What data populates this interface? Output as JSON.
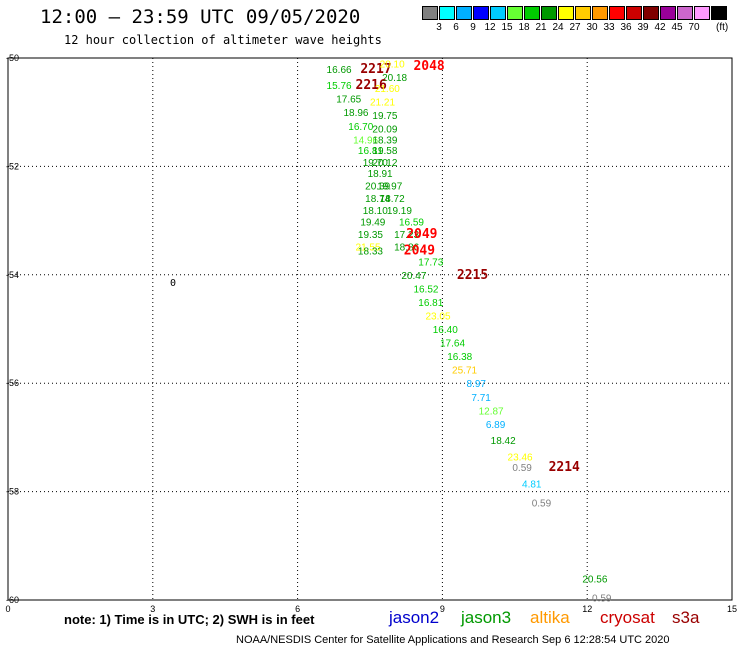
{
  "header": {
    "title": "12:00 – 23:59 UTC 09/05/2020",
    "subtitle": "12 hour collection of altimeter wave heights"
  },
  "legend": {
    "colors": [
      "#808080",
      "#00ffff",
      "#00b0ff",
      "#0000ff",
      "#00ccff",
      "#66ff33",
      "#00cc00",
      "#009900",
      "#ffff00",
      "#ffcc00",
      "#ff9900",
      "#ff0000",
      "#cc0000",
      "#800000",
      "#990099",
      "#cc66cc",
      "#ff99ff",
      "#000000"
    ],
    "labels": [
      "3",
      "6",
      "9",
      "12",
      "15",
      "18",
      "21",
      "24",
      "27",
      "30",
      "33",
      "36",
      "39",
      "42",
      "45",
      "70"
    ],
    "unit": "(ft)"
  },
  "footer": {
    "note": "note:  1) Time is in UTC;  2) SWH is in feet",
    "credit": "NOAA/NESDIS Center for Satellite Applications and Research     Sep  6 12:28:54 UTC 2020",
    "satellites": [
      {
        "name": "jason2",
        "color": "#0000cc"
      },
      {
        "name": "jason3",
        "color": "#009900"
      },
      {
        "name": "altika",
        "color": "#ff9900"
      },
      {
        "name": "cryosat",
        "color": "#cc0000"
      },
      {
        "name": "s3a",
        "color": "#990000"
      }
    ]
  },
  "map_labels": [
    {
      "text": "0"
    }
  ],
  "chart_data": {
    "type": "scatter",
    "xlim": [
      0,
      15
    ],
    "ylim": [
      -60,
      -50
    ],
    "x_ticks": [
      0,
      3,
      6,
      9,
      12,
      15
    ],
    "y_ticks": [
      -50,
      -52,
      -54,
      -56,
      -58,
      -60
    ],
    "x_tick_labels": [
      "0",
      "3",
      "6",
      "9",
      "12",
      "15"
    ],
    "y_tick_labels": [
      "-50",
      "-52",
      "-54",
      "-56",
      "-58",
      "-60"
    ],
    "grid": true,
    "points": [
      {
        "label": "16.66",
        "x": 6.6,
        "y": -50.2,
        "color": "#009900"
      },
      {
        "label": "2217",
        "x": 7.3,
        "y": -50.2,
        "color": "#990000",
        "bold": true
      },
      {
        "label": "20.10",
        "x": 7.7,
        "y": -50.1,
        "color": "#ffff00"
      },
      {
        "label": "20.18",
        "x": 7.75,
        "y": -50.35,
        "color": "#009900"
      },
      {
        "label": "2048",
        "x": 8.4,
        "y": -50.15,
        "color": "#ff0000",
        "bold": true
      },
      {
        "label": "15.76",
        "x": 6.6,
        "y": -50.5,
        "color": "#00cc00"
      },
      {
        "label": "2216",
        "x": 7.2,
        "y": -50.5,
        "color": "#990000",
        "bold": true
      },
      {
        "label": "21.60",
        "x": 7.6,
        "y": -50.55,
        "color": "#ffff00"
      },
      {
        "label": "17.65",
        "x": 6.8,
        "y": -50.75,
        "color": "#009900"
      },
      {
        "label": "21.21",
        "x": 7.5,
        "y": -50.8,
        "color": "#ffff00"
      },
      {
        "label": "18.96",
        "x": 6.95,
        "y": -51.0,
        "color": "#009900"
      },
      {
        "label": "19.75",
        "x": 7.55,
        "y": -51.05,
        "color": "#009900"
      },
      {
        "label": "16.70",
        "x": 7.05,
        "y": -51.25,
        "color": "#00cc00"
      },
      {
        "label": "20.09",
        "x": 7.55,
        "y": -51.3,
        "color": "#009900"
      },
      {
        "label": "14.96",
        "x": 7.15,
        "y": -51.5,
        "color": "#66ff33"
      },
      {
        "label": "18.39",
        "x": 7.55,
        "y": -51.5,
        "color": "#009900"
      },
      {
        "label": "16.81",
        "x": 7.25,
        "y": -51.7,
        "color": "#00cc00"
      },
      {
        "label": "19.58",
        "x": 7.55,
        "y": -51.7,
        "color": "#009900"
      },
      {
        "label": "19.70",
        "x": 7.35,
        "y": -51.92,
        "color": "#009900"
      },
      {
        "label": "20.12",
        "x": 7.55,
        "y": -51.92,
        "color": "#009900"
      },
      {
        "label": "18.91",
        "x": 7.45,
        "y": -52.12,
        "color": "#009900"
      },
      {
        "label": "20.39",
        "x": 7.4,
        "y": -52.35,
        "color": "#009900"
      },
      {
        "label": "19.97",
        "x": 7.65,
        "y": -52.35,
        "color": "#009900"
      },
      {
        "label": "18.74",
        "x": 7.4,
        "y": -52.58,
        "color": "#009900"
      },
      {
        "label": "18.72",
        "x": 7.7,
        "y": -52.58,
        "color": "#009900"
      },
      {
        "label": "18.10",
        "x": 7.35,
        "y": -52.8,
        "color": "#009900"
      },
      {
        "label": "19.19",
        "x": 7.85,
        "y": -52.8,
        "color": "#009900"
      },
      {
        "label": "19.49",
        "x": 7.3,
        "y": -53.02,
        "color": "#009900"
      },
      {
        "label": "16.59",
        "x": 8.1,
        "y": -53.02,
        "color": "#00cc00"
      },
      {
        "label": "19.35",
        "x": 7.25,
        "y": -53.25,
        "color": "#009900"
      },
      {
        "label": "17.23",
        "x": 8.0,
        "y": -53.25,
        "color": "#009900"
      },
      {
        "label": "2049",
        "x": 8.25,
        "y": -53.25,
        "color": "#ff0000",
        "bold": true
      },
      {
        "label": "21.55",
        "x": 7.2,
        "y": -53.48,
        "color": "#ffff00"
      },
      {
        "label": "18.33",
        "x": 7.25,
        "y": -53.55,
        "color": "#009900"
      },
      {
        "label": "18.86",
        "x": 8.0,
        "y": -53.48,
        "color": "#009900"
      },
      {
        "label": "2049",
        "x": 8.2,
        "y": -53.55,
        "color": "#ff0000",
        "bold": true
      },
      {
        "label": "17.73",
        "x": 8.5,
        "y": -53.75,
        "color": "#00cc00"
      },
      {
        "label": "20.47",
        "x": 8.15,
        "y": -54.0,
        "color": "#009900"
      },
      {
        "label": "2215",
        "x": 9.3,
        "y": -54.0,
        "color": "#990000",
        "bold": true
      },
      {
        "label": "16.52",
        "x": 8.4,
        "y": -54.25,
        "color": "#00cc00"
      },
      {
        "label": "16.81",
        "x": 8.5,
        "y": -54.5,
        "color": "#00cc00"
      },
      {
        "label": "23.05",
        "x": 8.65,
        "y": -54.75,
        "color": "#ffff00"
      },
      {
        "label": "16.40",
        "x": 8.8,
        "y": -55.0,
        "color": "#00cc00"
      },
      {
        "label": "17.64",
        "x": 8.95,
        "y": -55.25,
        "color": "#00cc00"
      },
      {
        "label": "16.38",
        "x": 9.1,
        "y": -55.5,
        "color": "#00cc00"
      },
      {
        "label": "25.71",
        "x": 9.2,
        "y": -55.75,
        "color": "#ffcc00"
      },
      {
        "label": "8.97",
        "x": 9.5,
        "y": -56.0,
        "color": "#00b0ff"
      },
      {
        "label": "7.71",
        "x": 9.6,
        "y": -56.25,
        "color": "#00b0ff"
      },
      {
        "label": "12.87",
        "x": 9.75,
        "y": -56.5,
        "color": "#66ff33"
      },
      {
        "label": "6.89",
        "x": 9.9,
        "y": -56.75,
        "color": "#00b0ff"
      },
      {
        "label": "18.42",
        "x": 10.0,
        "y": -57.05,
        "color": "#009900"
      },
      {
        "label": "23.46",
        "x": 10.35,
        "y": -57.35,
        "color": "#ffff00"
      },
      {
        "label": "0.59",
        "x": 10.45,
        "y": -57.55,
        "color": "#808080"
      },
      {
        "label": "2214",
        "x": 11.2,
        "y": -57.55,
        "color": "#990000",
        "bold": true
      },
      {
        "label": "4.81",
        "x": 10.65,
        "y": -57.85,
        "color": "#00ccff"
      },
      {
        "label": "0.59",
        "x": 10.85,
        "y": -58.2,
        "color": "#808080"
      },
      {
        "label": "20.56",
        "x": 11.9,
        "y": -59.6,
        "color": "#009900"
      },
      {
        "label": "0.59",
        "x": 12.1,
        "y": -59.95,
        "color": "#808080"
      }
    ]
  }
}
